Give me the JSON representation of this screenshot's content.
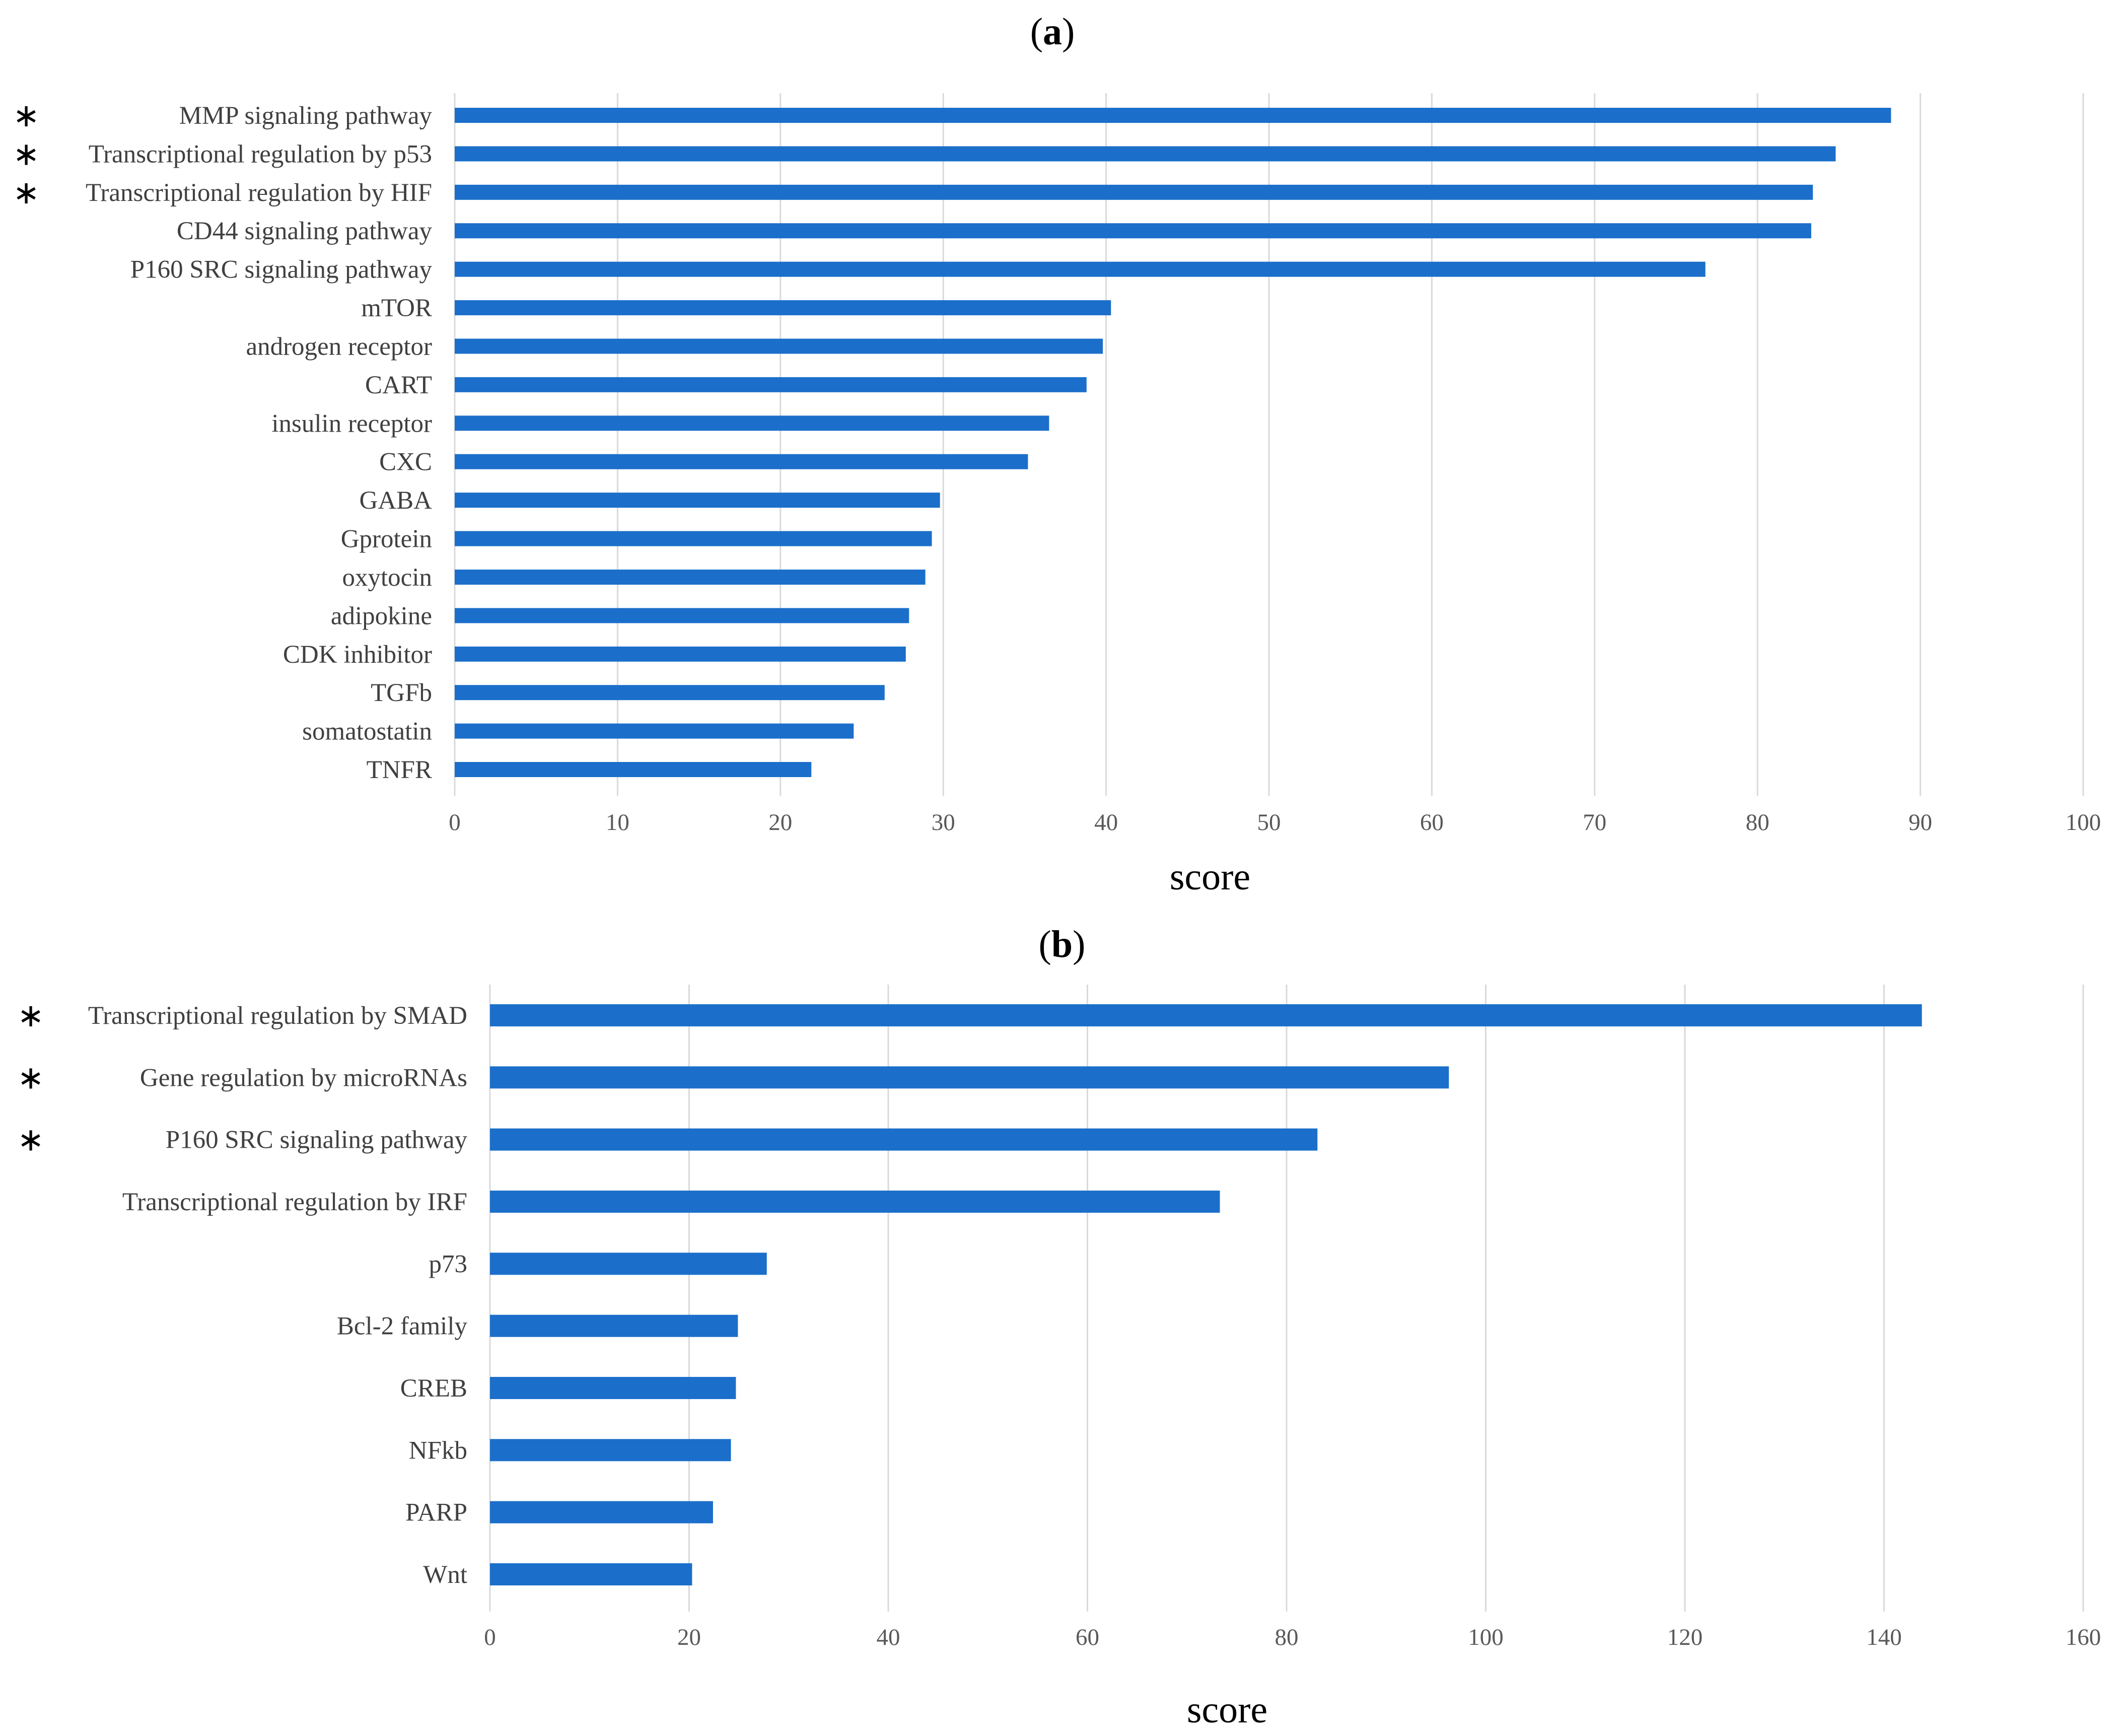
{
  "chart_data": [
    {
      "panel": "a",
      "panel_label": [
        "(",
        "a",
        ")"
      ],
      "type": "bar",
      "orientation": "horizontal",
      "xlabel": "score",
      "xlim": [
        0,
        100
      ],
      "xticks": [
        0,
        10,
        20,
        30,
        40,
        50,
        60,
        70,
        80,
        90,
        100
      ],
      "grid": true,
      "bar_color": "#1b6fca",
      "categories": [
        "MMP signaling pathway",
        "Transcriptional regulation by p53",
        "Transcriptional regulation by HIF",
        "CD44 signaling pathway",
        "P160 SRC signaling pathway",
        "mTOR",
        "androgen receptor",
        "CART",
        "insulin receptor",
        "CXC",
        "GABA",
        "Gprotein",
        "oxytocin",
        "adipokine",
        "CDK inhibitor",
        "TGFb",
        "somatostatin",
        "TNFR"
      ],
      "values": [
        88.2,
        84.8,
        83.4,
        83.3,
        76.8,
        40.3,
        39.8,
        38.8,
        36.5,
        35.2,
        29.8,
        29.3,
        28.9,
        27.9,
        27.7,
        26.4,
        24.5,
        21.9
      ],
      "starred": [
        true,
        true,
        true,
        false,
        false,
        false,
        false,
        false,
        false,
        false,
        false,
        false,
        false,
        false,
        false,
        false,
        false,
        false
      ],
      "star_symbol": "∗"
    },
    {
      "panel": "b",
      "panel_label": [
        "(",
        "b",
        ")"
      ],
      "type": "bar",
      "orientation": "horizontal",
      "xlabel": "score",
      "xlim": [
        0,
        160
      ],
      "xticks": [
        0,
        20,
        40,
        60,
        80,
        100,
        120,
        140,
        160
      ],
      "grid": true,
      "bar_color": "#1b6fca",
      "categories": [
        "Transcriptional regulation by SMAD",
        "Gene regulation by microRNAs",
        "P160 SRC signaling pathway",
        "Transcriptional regulation by IRF",
        "p73",
        "Bcl-2 family",
        "CREB",
        "NFkb",
        "PARP",
        "Wnt"
      ],
      "values": [
        143.8,
        96.3,
        83.1,
        73.3,
        27.8,
        24.9,
        24.7,
        24.2,
        22.4,
        20.3
      ],
      "starred": [
        true,
        true,
        true,
        false,
        false,
        false,
        false,
        false,
        false,
        false
      ],
      "star_symbol": "∗"
    }
  ]
}
